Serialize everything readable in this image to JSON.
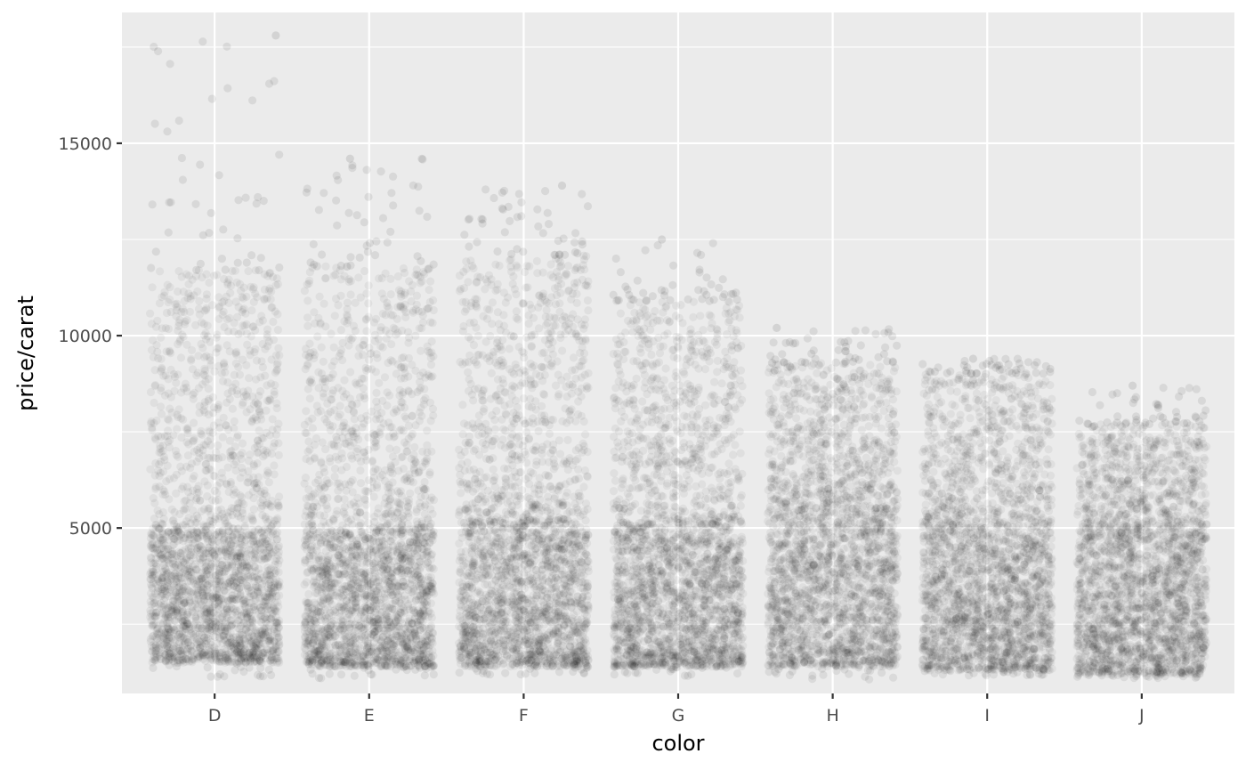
{
  "chart_data": {
    "type": "scatter",
    "subtype": "jittered strip plot",
    "title": "",
    "xlabel": "color",
    "ylabel": "price/carat",
    "categories": [
      "D",
      "E",
      "F",
      "G",
      "H",
      "I",
      "J"
    ],
    "ylim": [
      700,
      18400
    ],
    "y_ticks": [
      5000,
      10000,
      15000
    ],
    "y_tick_labels": [
      "5000",
      "10000",
      "15000"
    ],
    "grid": true,
    "legend": "none",
    "point_color": "#000000",
    "point_alpha": 0.05,
    "panel_background": "#ebebeb",
    "gridline_color": "#ffffff",
    "distribution_summary": [
      {
        "category": "D",
        "min": 1130,
        "dense_low": 1500,
        "dense_high": 4900,
        "upper_typical": 11700,
        "max": 17800
      },
      {
        "category": "E",
        "min": 1080,
        "dense_low": 1400,
        "dense_high": 4900,
        "upper_typical": 11800,
        "max": 14600
      },
      {
        "category": "F",
        "min": 1170,
        "dense_low": 1400,
        "dense_high": 5200,
        "upper_typical": 12100,
        "max": 13900
      },
      {
        "category": "G",
        "min": 1140,
        "dense_low": 1400,
        "dense_high": 5100,
        "upper_typical": 10900,
        "max": 12500
      },
      {
        "category": "H",
        "min": 1050,
        "dense_low": 1400,
        "dense_high": 5500,
        "upper_typical": 9300,
        "max": 10200
      },
      {
        "category": "I",
        "min": 1150,
        "dense_low": 1300,
        "dense_high": 5000,
        "upper_typical": 9000,
        "max": 9400
      },
      {
        "category": "J",
        "min": 1080,
        "dense_low": 1200,
        "dense_high": 4800,
        "upper_typical": 7700,
        "max": 8700
      }
    ]
  }
}
